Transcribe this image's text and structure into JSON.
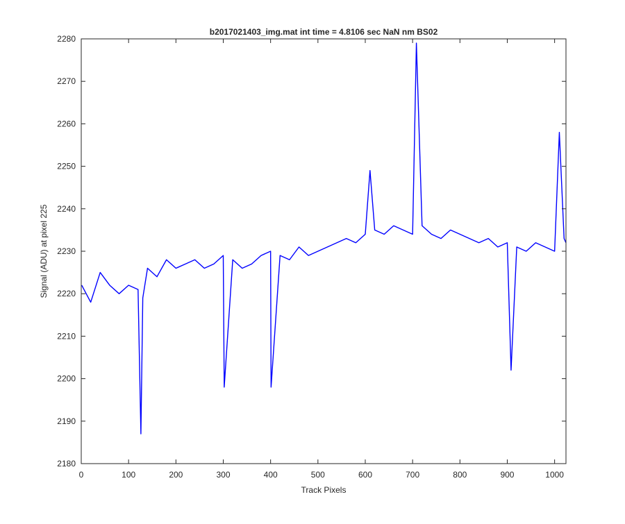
{
  "chart_data": {
    "type": "line",
    "title": "b2017021403_img.mat int time = 4.8106 sec  NaN nm BS02",
    "xlabel": "Track Pixels",
    "ylabel": "Signal (ADU) at pixel 225",
    "xlim": [
      0,
      1024
    ],
    "ylim": [
      2180,
      2280
    ],
    "xticks": [
      0,
      100,
      200,
      300,
      400,
      500,
      600,
      700,
      800,
      900,
      1000
    ],
    "yticks": [
      2180,
      2190,
      2200,
      2210,
      2220,
      2230,
      2240,
      2250,
      2260,
      2270,
      2280
    ],
    "grid": false,
    "legend": "none",
    "line_color": "#0000ff",
    "series": [
      {
        "x": [
          1,
          20,
          40,
          60,
          80,
          100,
          120,
          126,
          130,
          140,
          160,
          180,
          200,
          220,
          240,
          260,
          280,
          300,
          302,
          320,
          340,
          360,
          380,
          400,
          401,
          420,
          440,
          460,
          480,
          500,
          520,
          540,
          560,
          580,
          600,
          610,
          620,
          640,
          660,
          680,
          700,
          708,
          720,
          740,
          760,
          780,
          800,
          820,
          840,
          860,
          880,
          900,
          908,
          920,
          940,
          960,
          980,
          1000,
          1010,
          1020,
          1024
        ],
        "y": [
          2222,
          2218,
          2225,
          2222,
          2220,
          2222,
          2221,
          2187,
          2219,
          2226,
          2224,
          2228,
          2226,
          2227,
          2228,
          2226,
          2227,
          2229,
          2198,
          2228,
          2226,
          2227,
          2229,
          2230,
          2198,
          2229,
          2228,
          2231,
          2229,
          2230,
          2231,
          2232,
          2233,
          2232,
          2234,
          2249,
          2235,
          2234,
          2236,
          2235,
          2234,
          2279,
          2236,
          2234,
          2233,
          2235,
          2234,
          2233,
          2232,
          2233,
          2231,
          2232,
          2202,
          2231,
          2230,
          2232,
          2231,
          2230,
          2258,
          2233,
          2232
        ]
      }
    ]
  }
}
